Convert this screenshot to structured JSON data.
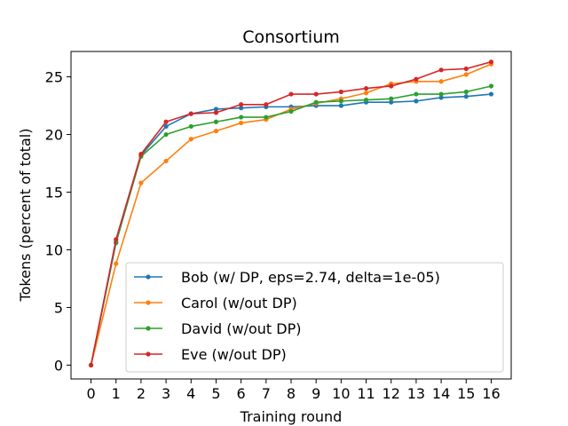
{
  "chart_data": {
    "type": "line",
    "title": "Consortium",
    "xlabel": "Training round",
    "ylabel": "Tokens (percent of total)",
    "x": [
      0,
      1,
      2,
      3,
      4,
      5,
      6,
      7,
      8,
      9,
      10,
      11,
      12,
      13,
      14,
      15,
      16
    ],
    "xlim": [
      -0.8,
      16.8
    ],
    "ylim": [
      -1.2,
      27.2
    ],
    "yticks": [
      0,
      5,
      10,
      15,
      20,
      25
    ],
    "legend_position": "lower right",
    "series": [
      {
        "name": "Bob (w/ DP, eps=2.74, delta=1e-05)",
        "color": "#1f77b4",
        "values": [
          0.0,
          10.6,
          18.2,
          20.7,
          21.8,
          22.2,
          22.3,
          22.4,
          22.4,
          22.5,
          22.5,
          22.8,
          22.8,
          22.9,
          23.2,
          23.3,
          23.5
        ]
      },
      {
        "name": "Carol (w/out DP)",
        "color": "#ff7f0e",
        "values": [
          0.0,
          8.8,
          15.8,
          17.7,
          19.6,
          20.3,
          21.0,
          21.3,
          22.2,
          22.7,
          23.1,
          23.6,
          24.4,
          24.6,
          24.6,
          25.2,
          26.1
        ]
      },
      {
        "name": "David (w/out DP)",
        "color": "#2ca02c",
        "values": [
          0.0,
          10.7,
          18.1,
          20.0,
          20.7,
          21.1,
          21.5,
          21.5,
          22.0,
          22.8,
          22.9,
          23.0,
          23.1,
          23.5,
          23.5,
          23.7,
          24.2
        ]
      },
      {
        "name": "Eve (w/out DP)",
        "color": "#d62728",
        "values": [
          0.0,
          10.9,
          18.3,
          21.1,
          21.8,
          21.9,
          22.6,
          22.6,
          23.5,
          23.5,
          23.7,
          24.0,
          24.2,
          24.8,
          25.6,
          25.7,
          26.3
        ]
      }
    ]
  }
}
